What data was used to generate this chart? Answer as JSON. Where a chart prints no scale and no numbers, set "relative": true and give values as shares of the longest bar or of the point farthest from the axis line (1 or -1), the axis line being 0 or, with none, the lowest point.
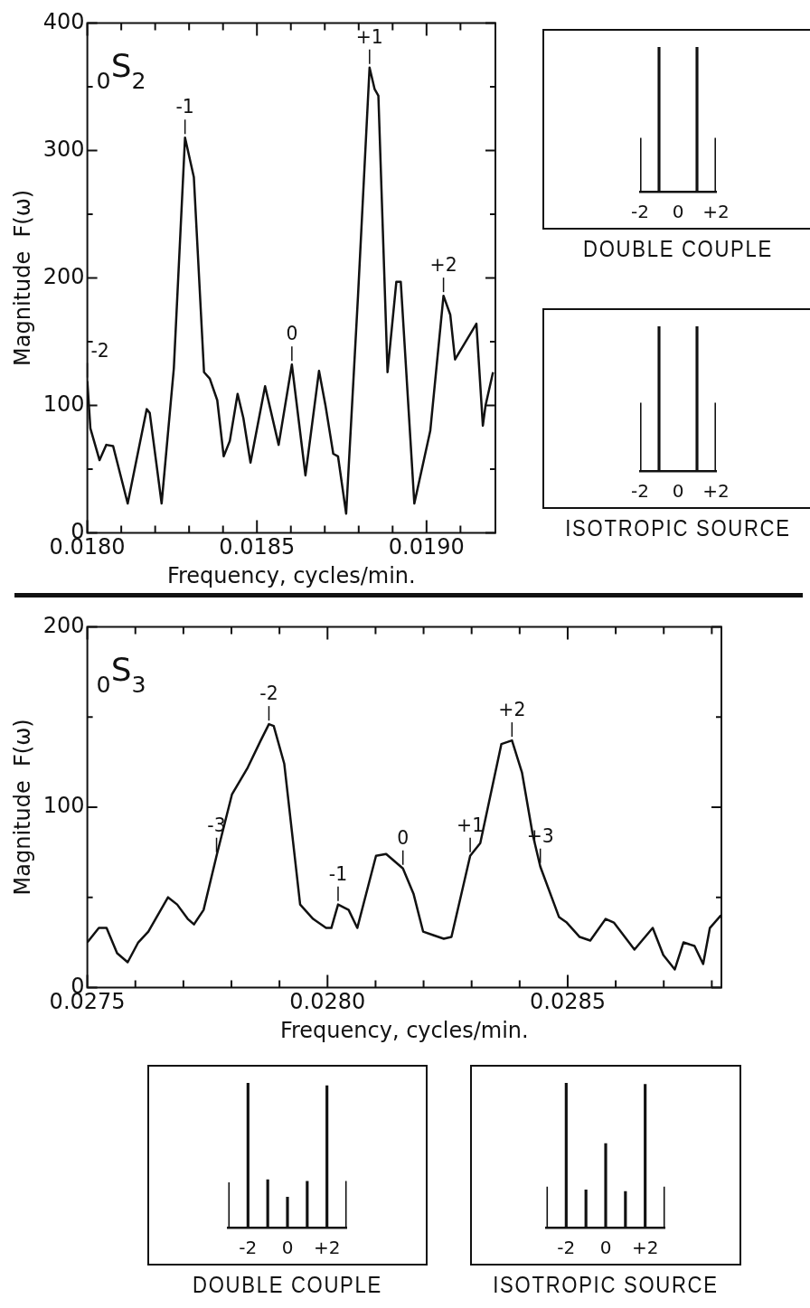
{
  "chart_data": [
    {
      "type": "line",
      "color": "#111111",
      "xlabel": "Frequency, cycles/min.",
      "ylabel": "Magnitude  F(ω)",
      "x": [
        0.018,
        0.018009,
        0.018036,
        0.018056,
        0.018076,
        0.018119,
        0.018175,
        0.018184,
        0.018219,
        0.018255,
        0.018288,
        0.018314,
        0.018344,
        0.018361,
        0.018383,
        0.018402,
        0.01842,
        0.018443,
        0.01846,
        0.018481,
        0.018524,
        0.018564,
        0.018603,
        0.018643,
        0.018683,
        0.018702,
        0.018725,
        0.018739,
        0.018763,
        0.018798,
        0.018832,
        0.018847,
        0.018858,
        0.018885,
        0.018911,
        0.018924,
        0.018964,
        0.019011,
        0.01905,
        0.01907,
        0.019084,
        0.019147,
        0.019166,
        0.019174,
        0.019196
      ],
      "values": [
        119,
        82,
        57,
        69,
        68,
        23,
        97,
        94,
        23,
        129,
        310,
        279,
        126,
        121,
        104,
        60,
        72,
        109,
        90,
        55,
        115,
        69,
        132,
        45,
        127,
        100,
        62,
        60,
        15,
        186,
        365,
        348,
        343,
        126,
        197,
        197,
        23,
        80,
        186,
        171,
        136,
        164,
        84,
        100,
        126
      ],
      "xlim": [
        0.018,
        0.019203
      ],
      "ylim": [
        0,
        400
      ],
      "xticks": [
        {
          "value": 0.018,
          "label": "0.0180"
        },
        {
          "value": 0.0181,
          "label": null
        },
        {
          "value": 0.0182,
          "label": null
        },
        {
          "value": 0.0183,
          "label": null
        },
        {
          "value": 0.0184,
          "label": null
        },
        0.0185,
        {
          "value": 0.0186,
          "label": null
        },
        {
          "value": 0.0187,
          "label": null
        },
        {
          "value": 0.0188,
          "label": null
        },
        {
          "value": 0.0189,
          "label": null
        },
        {
          "value": 0.019,
          "label": "0.0190"
        },
        {
          "value": 0.0191,
          "label": null
        }
      ],
      "yticks": [
        0,
        {
          "value": 50,
          "label": null
        },
        100,
        {
          "value": 150,
          "label": null
        },
        200,
        {
          "value": 250,
          "label": null
        },
        300,
        {
          "value": 350,
          "label": null
        },
        400
      ],
      "grid": false,
      "annotations": [
        "$_{0}$S$_{2}$",
        {
          "text": "-2",
          "x": 0.018,
          "y": 119
        },
        {
          "text": "-1",
          "x": 0.018288,
          "y": 310
        },
        {
          "text": "0",
          "x": 0.018603,
          "y": 132
        },
        {
          "text": "+1",
          "x": 0.018832,
          "y": 365
        },
        {
          "text": "+2",
          "x": 0.01905,
          "y": 186
        }
      ]
    },
    {
      "type": "bar",
      "relative": true,
      "title": "DOUBLE COUPLE",
      "color": "#111111",
      "categories": [
        "-2",
        null,
        "0",
        null,
        "+2"
      ],
      "values": [
        0.37,
        1,
        0,
        1,
        0.37
      ]
    },
    {
      "type": "bar",
      "relative": true,
      "title": "ISOTROPIC SOURCE",
      "color": "#111111",
      "categories": [
        "-2",
        null,
        "0",
        null,
        "+2"
      ],
      "values": [
        0.47,
        1,
        0,
        1,
        0.47
      ]
    },
    {
      "type": "line",
      "color": "#111111",
      "xlabel": "Frequency, cycles/min.",
      "ylabel": "Magnitude  F(ω)",
      "x": [
        0.0275,
        0.027524,
        0.02754,
        0.027562,
        0.027584,
        0.027606,
        0.027627,
        0.027668,
        0.027687,
        0.027709,
        0.027722,
        0.027742,
        0.027769,
        0.027801,
        0.027834,
        0.027861,
        0.027878,
        0.027888,
        0.02791,
        0.027943,
        0.02797,
        0.027997,
        0.028008,
        0.028022,
        0.028044,
        0.028062,
        0.028101,
        0.028122,
        0.028157,
        0.028179,
        0.028199,
        0.02822,
        0.028242,
        0.028258,
        0.028297,
        0.028318,
        0.028362,
        0.028384,
        0.028405,
        0.028427,
        0.028443,
        0.028482,
        0.028498,
        0.028525,
        0.028547,
        0.028579,
        0.028596,
        0.028639,
        0.028677,
        0.028699,
        0.028723,
        0.028741,
        0.028764,
        0.028782,
        0.028796,
        0.028819
      ],
      "values": [
        25,
        33,
        33,
        19,
        14,
        25,
        31,
        50,
        46,
        38,
        35,
        43,
        73,
        107,
        122,
        137,
        146,
        145,
        124,
        46,
        38,
        33,
        33,
        46,
        43,
        33,
        73,
        74,
        66,
        52,
        31,
        29,
        27,
        28,
        73,
        80,
        135,
        137,
        119,
        85,
        67,
        39,
        36,
        28,
        26,
        38,
        36,
        21,
        33,
        18,
        10,
        25,
        23,
        13,
        33,
        40
      ],
      "xlim": [
        0.0275,
        0.02882
      ],
      "ylim": [
        0,
        200
      ],
      "xticks": [
        0.0275,
        {
          "value": 0.0276,
          "label": null
        },
        {
          "value": 0.0277,
          "label": null
        },
        {
          "value": 0.0278,
          "label": null
        },
        {
          "value": 0.0279,
          "label": null
        },
        {
          "value": 0.028,
          "label": "0.0280"
        },
        {
          "value": 0.0281,
          "label": null
        },
        {
          "value": 0.0282,
          "label": null
        },
        {
          "value": 0.0283,
          "label": null
        },
        {
          "value": 0.0284,
          "label": null
        },
        0.0285,
        {
          "value": 0.0286,
          "label": null
        },
        {
          "value": 0.0287,
          "label": null
        },
        {
          "value": 0.0288,
          "label": null
        }
      ],
      "yticks": [
        0,
        {
          "value": 50,
          "label": null
        },
        100,
        {
          "value": 150,
          "label": null
        },
        200
      ],
      "grid": false,
      "annotations": [
        "$_{0}$S$_{3}$",
        {
          "text": "-3",
          "x": 0.027769,
          "y": 73
        },
        {
          "text": "-2",
          "x": 0.027878,
          "y": 146
        },
        {
          "text": "-1",
          "x": 0.028022,
          "y": 46
        },
        {
          "text": "0",
          "x": 0.028157,
          "y": 66
        },
        {
          "text": "+1",
          "x": 0.028297,
          "y": 73
        },
        {
          "text": "+2",
          "x": 0.028384,
          "y": 137
        },
        {
          "text": "+3",
          "x": 0.028443,
          "y": 67
        }
      ]
    },
    {
      "type": "bar",
      "relative": true,
      "title": "DOUBLE COUPLE",
      "color": "#111111",
      "categories": [
        null,
        "-2",
        null,
        "0",
        null,
        "+2",
        null
      ],
      "values": [
        0.31,
        1,
        0.33,
        0.21,
        0.32,
        0.98,
        0.32
      ]
    },
    {
      "type": "bar",
      "relative": true,
      "title": "ISOTROPIC SOURCE",
      "color": "#111111",
      "categories": [
        null,
        "-2",
        null,
        "0",
        null,
        "+2",
        null
      ],
      "values": [
        0.28,
        1,
        0.26,
        0.58,
        0.25,
        0.99,
        0.28
      ]
    }
  ]
}
